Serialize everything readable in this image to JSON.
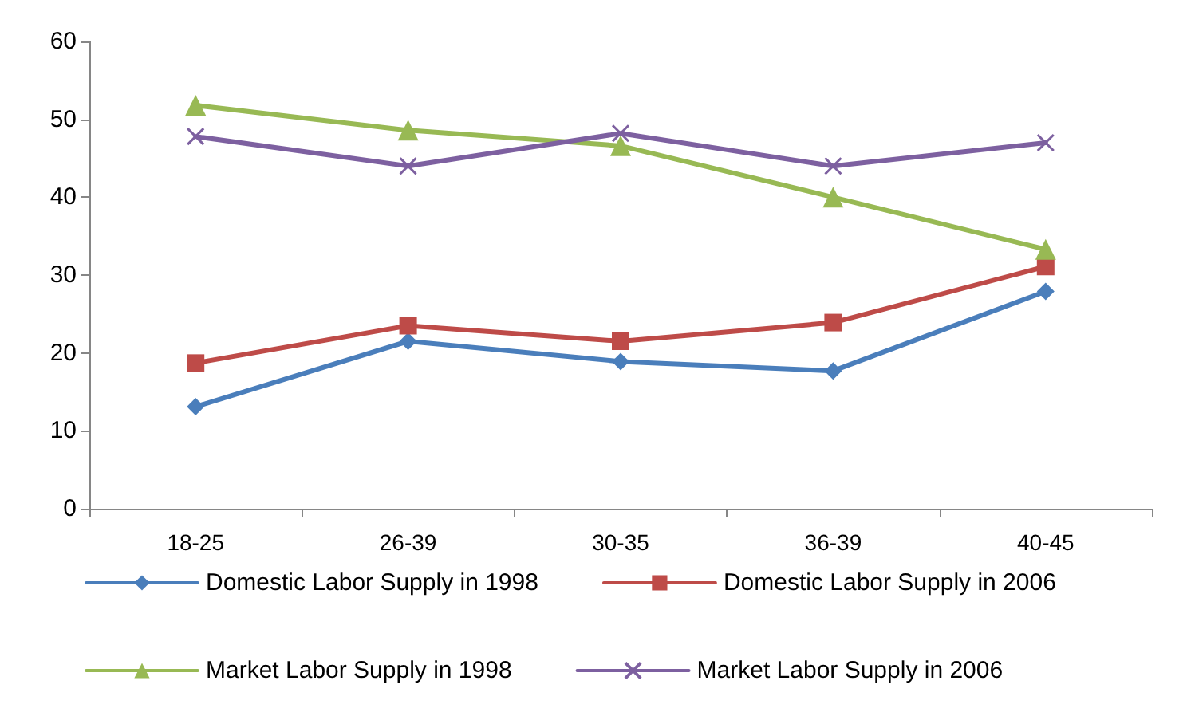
{
  "chart_data": {
    "type": "line",
    "categories": [
      "18-25",
      "26-39",
      "30-35",
      "36-39",
      "40-45"
    ],
    "series": [
      {
        "name": "Domestic Labor Supply in 1998",
        "color": "#4a7ebb",
        "marker": "diamond",
        "values": [
          13.1,
          21.5,
          18.9,
          17.7,
          27.9
        ]
      },
      {
        "name": "Domestic Labor Supply in 2006",
        "color": "#be4b48",
        "marker": "square",
        "values": [
          18.7,
          23.5,
          21.5,
          23.9,
          31.1
        ]
      },
      {
        "name": "Market Labor Supply in 1998",
        "color": "#98b954",
        "marker": "triangle",
        "values": [
          51.8,
          48.6,
          46.6,
          40.0,
          33.3
        ]
      },
      {
        "name": "Market Labor Supply in 2006",
        "color": "#7d60a0",
        "marker": "cross",
        "values": [
          47.8,
          44.0,
          48.2,
          44.0,
          47.0
        ]
      }
    ],
    "ylim": [
      0,
      60
    ],
    "yticks": [
      0,
      10,
      20,
      30,
      40,
      50,
      60
    ],
    "grid": false,
    "legend": "bottom",
    "line_style": "solid"
  }
}
